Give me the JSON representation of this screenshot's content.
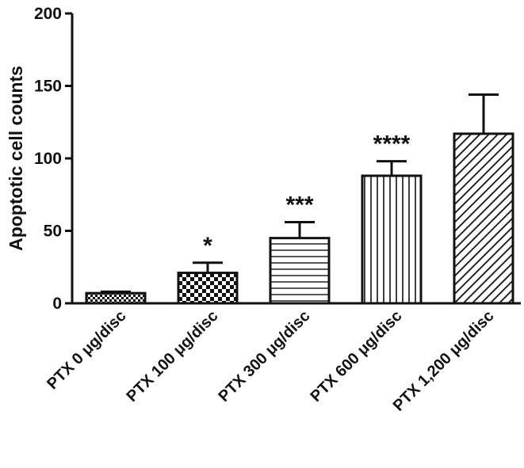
{
  "chart_data": {
    "type": "bar",
    "title": "",
    "xlabel": "",
    "ylabel": "Apoptotic cell counts",
    "ylim": [
      0,
      200
    ],
    "yticks": [
      0,
      50,
      100,
      150,
      200
    ],
    "categories": [
      "PTX 0 μg/disc",
      "PTX 100 μg/disc",
      "PTX 300 μg/disc",
      "PTX 600 μg/disc",
      "PTX 1,200 μg/disc"
    ],
    "values": [
      7,
      21,
      45,
      88,
      117
    ],
    "error_upper": [
      1,
      7,
      11,
      10,
      27
    ],
    "significance": [
      "",
      "*",
      "***",
      "****",
      ""
    ],
    "bar_patterns": [
      "checker-fine",
      "checker-coarse",
      "horizontal-lines",
      "vertical-lines",
      "diagonal-lines"
    ],
    "grid": false,
    "legend": "none"
  },
  "colors": {
    "bar_stroke": "#111111",
    "pattern_ink": "#111111",
    "background": "#ffffff"
  }
}
